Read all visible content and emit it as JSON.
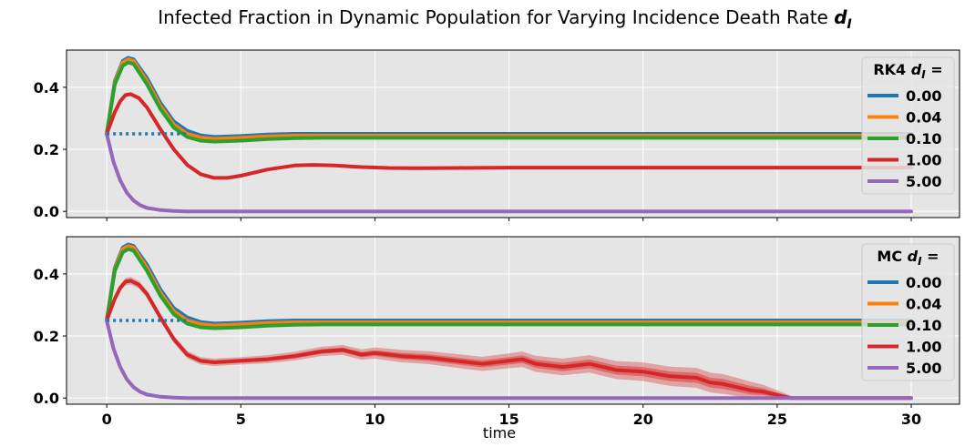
{
  "figure": {
    "title_text": "Infected Fraction in Dynamic Population for Varying Incidence Death Rate ",
    "title_symbol": "d",
    "title_subscript": "I",
    "xlabel": "time",
    "colors": {
      "background": "#e5e5e5",
      "grid": "#ffffff"
    }
  },
  "chart_data": [
    {
      "type": "line",
      "panel": "top",
      "xlim": [
        -1.5,
        31.8
      ],
      "ylim": [
        -0.02,
        0.52
      ],
      "xticks": [
        0,
        5,
        10,
        15,
        20,
        25,
        30
      ],
      "xtick_labels_visible": false,
      "yticks": [
        0.0,
        0.2,
        0.4
      ],
      "ytick_labels": [
        "0.0",
        "0.2",
        "0.4"
      ],
      "grid": true,
      "legend": {
        "title_prefix": "RK4",
        "title_symbol": "d",
        "title_subscript": "I",
        "title_suffix": "=",
        "placement": "right"
      },
      "reference_line": {
        "y": 0.25,
        "x": [
          0,
          3
        ],
        "style": "dotted",
        "color": "#1f77b4"
      },
      "series": [
        {
          "name": "0.00",
          "color": "#1f77b4",
          "x": [
            0,
            0.3,
            0.6,
            0.8,
            1,
            1.5,
            2,
            2.5,
            3,
            3.5,
            4,
            5,
            6,
            7,
            8,
            10,
            30
          ],
          "y": [
            0.25,
            0.42,
            0.485,
            0.495,
            0.49,
            0.43,
            0.35,
            0.29,
            0.26,
            0.245,
            0.24,
            0.243,
            0.248,
            0.25,
            0.25,
            0.25,
            0.25
          ]
        },
        {
          "name": "0.04",
          "color": "#ff7f0e",
          "x": [
            0,
            0.3,
            0.6,
            0.8,
            1,
            1.5,
            2,
            2.5,
            3,
            3.5,
            4,
            5,
            6,
            7,
            8,
            10,
            30
          ],
          "y": [
            0.25,
            0.415,
            0.48,
            0.49,
            0.485,
            0.42,
            0.34,
            0.28,
            0.25,
            0.238,
            0.234,
            0.237,
            0.242,
            0.244,
            0.244,
            0.244,
            0.244
          ]
        },
        {
          "name": "0.10",
          "color": "#2ca02c",
          "x": [
            0,
            0.3,
            0.6,
            0.8,
            1,
            1.5,
            2,
            2.5,
            3,
            3.5,
            4,
            5,
            6,
            7,
            8,
            10,
            30
          ],
          "y": [
            0.25,
            0.41,
            0.47,
            0.48,
            0.475,
            0.41,
            0.33,
            0.27,
            0.24,
            0.228,
            0.225,
            0.228,
            0.233,
            0.236,
            0.237,
            0.237,
            0.237
          ]
        },
        {
          "name": "1.00",
          "color": "#d62728",
          "x": [
            0,
            0.3,
            0.5,
            0.7,
            0.9,
            1.2,
            1.5,
            2,
            2.5,
            3,
            3.5,
            4,
            4.5,
            5,
            6,
            7,
            7.7,
            8.5,
            9.5,
            10.5,
            11.5,
            13,
            15,
            20,
            30
          ],
          "y": [
            0.25,
            0.32,
            0.355,
            0.375,
            0.378,
            0.365,
            0.335,
            0.265,
            0.2,
            0.15,
            0.12,
            0.108,
            0.108,
            0.115,
            0.135,
            0.148,
            0.15,
            0.148,
            0.143,
            0.14,
            0.139,
            0.14,
            0.141,
            0.141,
            0.141
          ]
        },
        {
          "name": "5.00",
          "color": "#9467bd",
          "x": [
            0,
            0.25,
            0.5,
            0.75,
            1,
            1.25,
            1.5,
            2,
            2.5,
            3,
            4,
            30
          ],
          "y": [
            0.25,
            0.16,
            0.1,
            0.06,
            0.035,
            0.02,
            0.011,
            0.004,
            0.001,
            0.0,
            0.0,
            0.0
          ]
        }
      ]
    },
    {
      "type": "line",
      "panel": "bottom",
      "xlim": [
        -1.5,
        31.8
      ],
      "ylim": [
        -0.02,
        0.52
      ],
      "xticks": [
        0,
        5,
        10,
        15,
        20,
        25,
        30
      ],
      "xtick_labels": [
        "0",
        "5",
        "10",
        "15",
        "20",
        "25",
        "30"
      ],
      "yticks": [
        0.0,
        0.2,
        0.4
      ],
      "ytick_labels": [
        "0.0",
        "0.2",
        "0.4"
      ],
      "grid": true,
      "xlabel": "time",
      "legend": {
        "title_prefix": "MC",
        "title_symbol": "d",
        "title_subscript": "I",
        "title_suffix": "=",
        "placement": "right"
      },
      "reference_line": {
        "y": 0.25,
        "x": [
          0,
          3
        ],
        "style": "dotted",
        "color": "#1f77b4"
      },
      "series": [
        {
          "name": "0.00",
          "color": "#1f77b4",
          "x": [
            0,
            0.3,
            0.6,
            0.8,
            1,
            1.5,
            2,
            2.5,
            3,
            3.5,
            4,
            5,
            6,
            7,
            8,
            10,
            30
          ],
          "y": [
            0.25,
            0.42,
            0.485,
            0.495,
            0.49,
            0.43,
            0.35,
            0.29,
            0.26,
            0.245,
            0.24,
            0.243,
            0.248,
            0.25,
            0.25,
            0.25,
            0.25
          ]
        },
        {
          "name": "0.04",
          "color": "#ff7f0e",
          "x": [
            0,
            0.3,
            0.6,
            0.8,
            1,
            1.5,
            2,
            2.5,
            3,
            3.5,
            4,
            5,
            6,
            7,
            8,
            10,
            30
          ],
          "y": [
            0.25,
            0.415,
            0.48,
            0.49,
            0.485,
            0.42,
            0.34,
            0.28,
            0.25,
            0.238,
            0.234,
            0.237,
            0.242,
            0.244,
            0.244,
            0.244,
            0.244
          ]
        },
        {
          "name": "0.10",
          "color": "#2ca02c",
          "x": [
            0,
            0.3,
            0.6,
            0.8,
            1,
            1.5,
            2,
            2.5,
            3,
            3.5,
            4,
            5,
            6,
            7,
            8,
            10,
            30
          ],
          "y": [
            0.25,
            0.41,
            0.47,
            0.48,
            0.475,
            0.41,
            0.33,
            0.27,
            0.24,
            0.228,
            0.225,
            0.228,
            0.233,
            0.236,
            0.237,
            0.237,
            0.237
          ]
        },
        {
          "name": "1.00",
          "color": "#d62728",
          "x": [
            0,
            0.3,
            0.5,
            0.7,
            0.9,
            1.2,
            1.5,
            2,
            2.5,
            3,
            3.5,
            4,
            5,
            6,
            7,
            8,
            8.8,
            9.5,
            10,
            10.5,
            11,
            12,
            13,
            14,
            15,
            15.5,
            16,
            17,
            18,
            19,
            20,
            21,
            22,
            22.5,
            23,
            24,
            24.5,
            25,
            25.5,
            26,
            30
          ],
          "y": [
            0.25,
            0.32,
            0.355,
            0.375,
            0.378,
            0.365,
            0.335,
            0.26,
            0.19,
            0.14,
            0.12,
            0.115,
            0.12,
            0.125,
            0.135,
            0.15,
            0.155,
            0.14,
            0.145,
            0.14,
            0.135,
            0.13,
            0.12,
            0.11,
            0.12,
            0.125,
            0.11,
            0.1,
            0.11,
            0.09,
            0.085,
            0.07,
            0.065,
            0.05,
            0.045,
            0.025,
            0.02,
            0.01,
            0.0,
            0.0,
            0.0
          ],
          "band_halfwidth": [
            0,
            0.005,
            0.01,
            0.012,
            0.012,
            0.012,
            0.012,
            0.012,
            0.012,
            0.012,
            0.012,
            0.012,
            0.012,
            0.013,
            0.014,
            0.015,
            0.016,
            0.017,
            0.018,
            0.019,
            0.02,
            0.021,
            0.022,
            0.023,
            0.024,
            0.025,
            0.026,
            0.027,
            0.028,
            0.029,
            0.03,
            0.031,
            0.032,
            0.032,
            0.032,
            0.028,
            0.022,
            0.015,
            0.008,
            0,
            0
          ]
        },
        {
          "name": "5.00",
          "color": "#9467bd",
          "x": [
            0,
            0.25,
            0.5,
            0.75,
            1,
            1.25,
            1.5,
            2,
            2.5,
            3,
            4,
            30
          ],
          "y": [
            0.25,
            0.16,
            0.1,
            0.06,
            0.035,
            0.02,
            0.011,
            0.004,
            0.001,
            0.0,
            0.0,
            0.0
          ]
        }
      ]
    }
  ]
}
